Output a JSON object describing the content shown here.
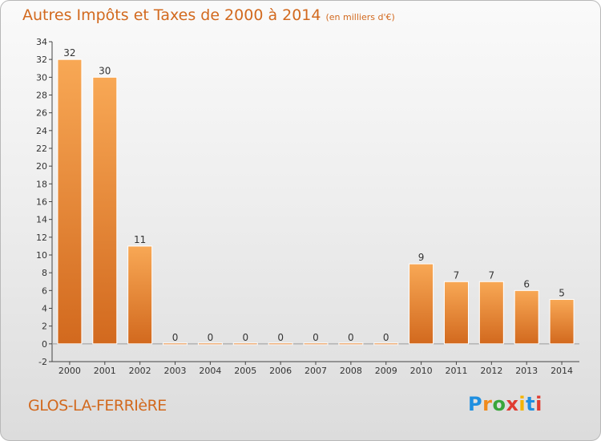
{
  "title": "Autres Impôts et Taxes de 2000 à 2014",
  "unit": "(en milliers d'€)",
  "place": "GLOS-LA-FERRIèRE",
  "logo": {
    "letters": [
      "P",
      "r",
      "o",
      "x",
      "i",
      "t",
      "i"
    ],
    "colors": [
      "#1f8fe0",
      "#f08a1c",
      "#3aa63a",
      "#e03c31",
      "#f4b400",
      "#1f8fe0",
      "#e03c31"
    ]
  },
  "chart_data": {
    "type": "bar",
    "categories": [
      "2000",
      "2001",
      "2002",
      "2003",
      "2004",
      "2005",
      "2006",
      "2007",
      "2008",
      "2009",
      "2010",
      "2011",
      "2012",
      "2013",
      "2014"
    ],
    "values": [
      32,
      30,
      11,
      0,
      0,
      0,
      0,
      0,
      0,
      0,
      9,
      7,
      7,
      6,
      5
    ],
    "value_labels": [
      "32",
      "30",
      "11",
      "0",
      "0",
      "0",
      "0",
      "0",
      "0",
      "0",
      "9",
      "7",
      "7",
      "6",
      "5"
    ],
    "ylim": [
      -2,
      34
    ],
    "yticks": [
      -2,
      0,
      2,
      4,
      6,
      8,
      10,
      12,
      14,
      16,
      18,
      20,
      22,
      24,
      26,
      28,
      30,
      32,
      34
    ],
    "grid": false,
    "bar_color": "#e8852c"
  }
}
